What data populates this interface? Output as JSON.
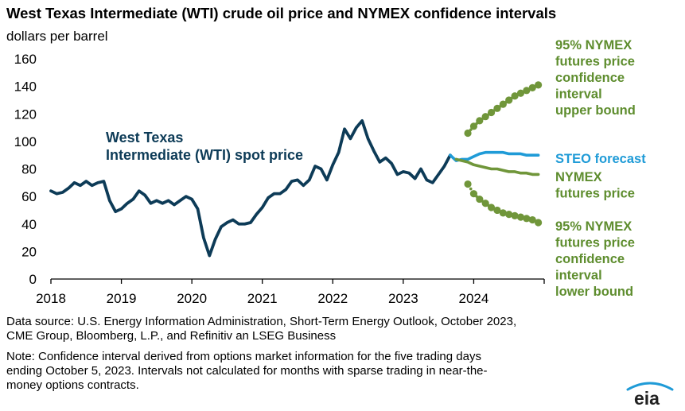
{
  "header": {
    "title": "West Texas Intermediate (WTI) crude oil price and NYMEX confidence intervals",
    "subtitle": "dollars per barrel"
  },
  "chart_data": {
    "type": "line",
    "title": "West Texas Intermediate (WTI) crude oil price and NYMEX confidence intervals",
    "ylabel": "dollars per barrel",
    "ylim": [
      0,
      160
    ],
    "yticks": [
      "0",
      "20",
      "40",
      "60",
      "80",
      "100",
      "120",
      "140",
      "160"
    ],
    "xlim": [
      "2018-01",
      "2024-12"
    ],
    "xticks": [
      "2018",
      "2019",
      "2020",
      "2021",
      "2022",
      "2023",
      "2024"
    ],
    "grid": false,
    "legend": "direct labels on right",
    "colors": {
      "wti": "#0d3b57",
      "steo": "#1f9bd7",
      "nymex": "#70963a",
      "annotation": "#5e8d2e",
      "steo_label": "#1f9bd7"
    },
    "series": [
      {
        "name": "West Texas Intermediate (WTI) spot price",
        "style": "solid",
        "x": [
          "2018-01",
          "2018-02",
          "2018-03",
          "2018-04",
          "2018-05",
          "2018-06",
          "2018-07",
          "2018-08",
          "2018-09",
          "2018-10",
          "2018-11",
          "2018-12",
          "2019-01",
          "2019-02",
          "2019-03",
          "2019-04",
          "2019-05",
          "2019-06",
          "2019-07",
          "2019-08",
          "2019-09",
          "2019-10",
          "2019-11",
          "2019-12",
          "2020-01",
          "2020-02",
          "2020-03",
          "2020-04",
          "2020-05",
          "2020-06",
          "2020-07",
          "2020-08",
          "2020-09",
          "2020-10",
          "2020-11",
          "2020-12",
          "2021-01",
          "2021-02",
          "2021-03",
          "2021-04",
          "2021-05",
          "2021-06",
          "2021-07",
          "2021-08",
          "2021-09",
          "2021-10",
          "2021-11",
          "2021-12",
          "2022-01",
          "2022-02",
          "2022-03",
          "2022-04",
          "2022-05",
          "2022-06",
          "2022-07",
          "2022-08",
          "2022-09",
          "2022-10",
          "2022-11",
          "2022-12",
          "2023-01",
          "2023-02",
          "2023-03",
          "2023-04",
          "2023-05",
          "2023-06",
          "2023-07",
          "2023-08",
          "2023-09"
        ],
        "values": [
          64,
          62,
          63,
          66,
          70,
          68,
          71,
          68,
          70,
          71,
          57,
          49,
          51,
          55,
          58,
          64,
          61,
          55,
          57,
          55,
          57,
          54,
          57,
          60,
          58,
          51,
          30,
          17,
          29,
          38,
          41,
          43,
          40,
          40,
          41,
          47,
          52,
          59,
          62,
          62,
          65,
          71,
          72,
          68,
          72,
          82,
          80,
          72,
          83,
          92,
          109,
          102,
          110,
          115,
          102,
          93,
          85,
          88,
          84,
          76,
          78,
          77,
          73,
          80,
          72,
          70,
          76,
          82,
          90
        ]
      },
      {
        "name": "STEO forecast",
        "style": "solid",
        "x": [
          "2023-09",
          "2023-10",
          "2023-11",
          "2023-12",
          "2024-01",
          "2024-02",
          "2024-03",
          "2024-04",
          "2024-05",
          "2024-06",
          "2024-07",
          "2024-08",
          "2024-09",
          "2024-10",
          "2024-11",
          "2024-12"
        ],
        "values": [
          90,
          86,
          87,
          87,
          89,
          91,
          92,
          92,
          92,
          92,
          91,
          91,
          91,
          90,
          90,
          90
        ]
      },
      {
        "name": "NYMEX futures price",
        "style": "solid",
        "x": [
          "2023-10",
          "2023-11",
          "2023-12",
          "2024-01",
          "2024-02",
          "2024-03",
          "2024-04",
          "2024-05",
          "2024-06",
          "2024-07",
          "2024-08",
          "2024-09",
          "2024-10",
          "2024-11",
          "2024-12"
        ],
        "values": [
          87,
          86,
          85,
          83,
          82,
          81,
          80,
          80,
          79,
          78,
          78,
          77,
          77,
          76,
          76
        ]
      },
      {
        "name": "95% NYMEX futures price confidence interval upper bound",
        "style": "dots",
        "x": [
          "2023-12",
          "2024-01",
          "2024-02",
          "2024-03",
          "2024-04",
          "2024-05",
          "2024-06",
          "2024-07",
          "2024-08",
          "2024-09",
          "2024-10",
          "2024-11",
          "2024-12"
        ],
        "values": [
          106,
          111,
          115,
          118,
          121,
          124,
          127,
          130,
          133,
          135,
          137,
          139,
          141
        ]
      },
      {
        "name": "95% NYMEX futures price confidence interval lower bound",
        "style": "dots",
        "x": [
          "2023-12",
          "2024-01",
          "2024-02",
          "2024-03",
          "2024-04",
          "2024-05",
          "2024-06",
          "2024-07",
          "2024-08",
          "2024-09",
          "2024-10",
          "2024-11",
          "2024-12"
        ],
        "values": [
          69,
          62,
          58,
          55,
          52,
          50,
          48,
          47,
          46,
          45,
          44,
          43,
          41
        ]
      }
    ],
    "annotations": {
      "wti": [
        "West Texas",
        "Intermediate (WTI) spot price"
      ],
      "upper": [
        "95% NYMEX",
        "futures price",
        "confidence",
        "interval",
        "upper bound"
      ],
      "steo": "STEO forecast",
      "nymex": [
        "NYMEX",
        "futures price"
      ],
      "lower": [
        "95% NYMEX",
        "futures price",
        "confidence",
        "interval",
        "lower bound"
      ]
    }
  },
  "footer": {
    "source_line1": "Data source: U.S. Energy Information Administration, Short-Term Energy Outlook, October 2023,",
    "source_line2": "CME Group, Bloomberg, L.P., and Refinitiv an LSEG Business",
    "note_line1": "Note: Confidence interval derived from options market information for the five trading days",
    "note_line2": "ending October 5, 2023. Intervals not calculated for months with sparse trading in near-the-",
    "note_line3": "money options contracts.",
    "logo_text": "eia"
  }
}
